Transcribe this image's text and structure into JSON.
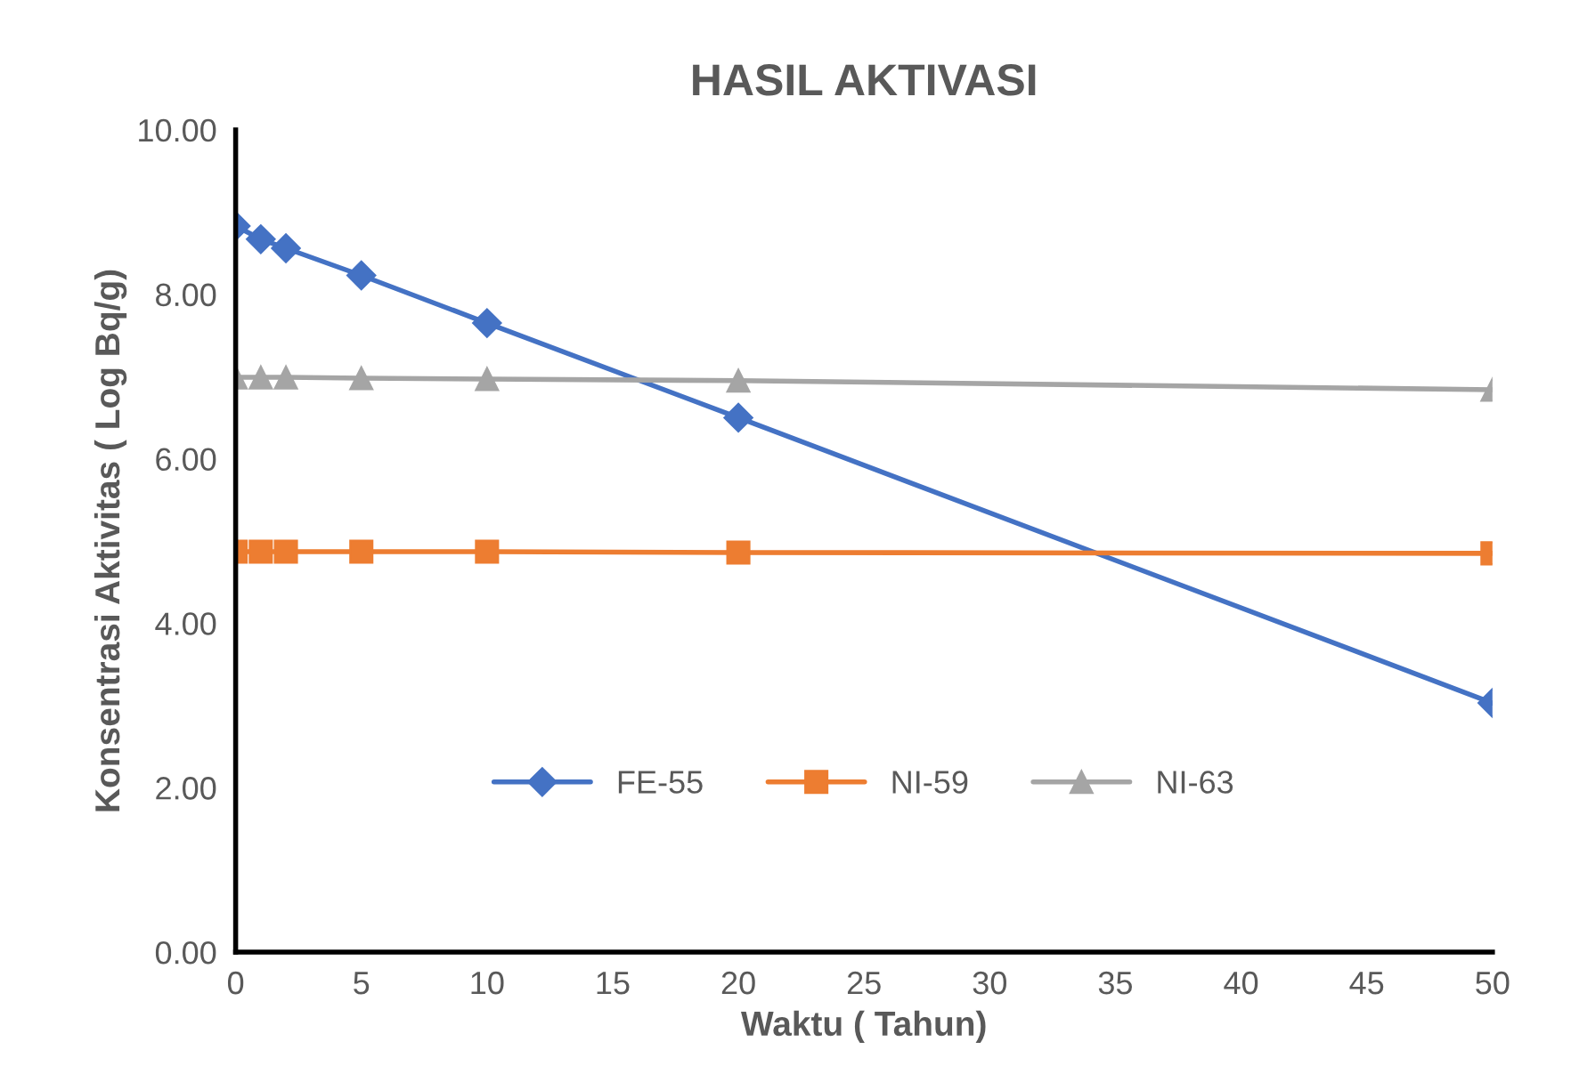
{
  "chart_data": {
    "type": "line",
    "title": "HASIL AKTIVASI",
    "xlabel": "Waktu ( Tahun)",
    "ylabel": "Konsentrasi Aktivitas ( Log Bq/g)",
    "x": [
      0,
      1,
      2,
      5,
      10,
      20,
      50
    ],
    "series": [
      {
        "name": "FE-55",
        "color": "#4472c4",
        "marker": "diamond",
        "values": [
          8.83,
          8.67,
          8.56,
          8.23,
          7.65,
          6.5,
          3.03
        ]
      },
      {
        "name": "NI-59",
        "color": "#ed7d31",
        "marker": "square",
        "values": [
          4.87,
          4.87,
          4.87,
          4.87,
          4.87,
          4.86,
          4.85
        ]
      },
      {
        "name": "NI-63",
        "color": "#a5a5a5",
        "marker": "triangle",
        "values": [
          6.99,
          6.99,
          6.99,
          6.98,
          6.97,
          6.95,
          6.84
        ]
      }
    ],
    "xlim": [
      0,
      50
    ],
    "xticks": [
      0,
      5,
      10,
      15,
      20,
      25,
      30,
      35,
      40,
      45,
      50
    ],
    "ylim": [
      0,
      10
    ],
    "yticks": [
      {
        "value": 0,
        "label": "0.00"
      },
      {
        "value": 2,
        "label": "2.00"
      },
      {
        "value": 4,
        "label": "4.00"
      },
      {
        "value": 6,
        "label": "6.00"
      },
      {
        "value": 8,
        "label": "8.00"
      },
      {
        "value": 10,
        "label": "10.00"
      }
    ],
    "grid": false,
    "legend": "bottom",
    "line_style": "solid"
  }
}
